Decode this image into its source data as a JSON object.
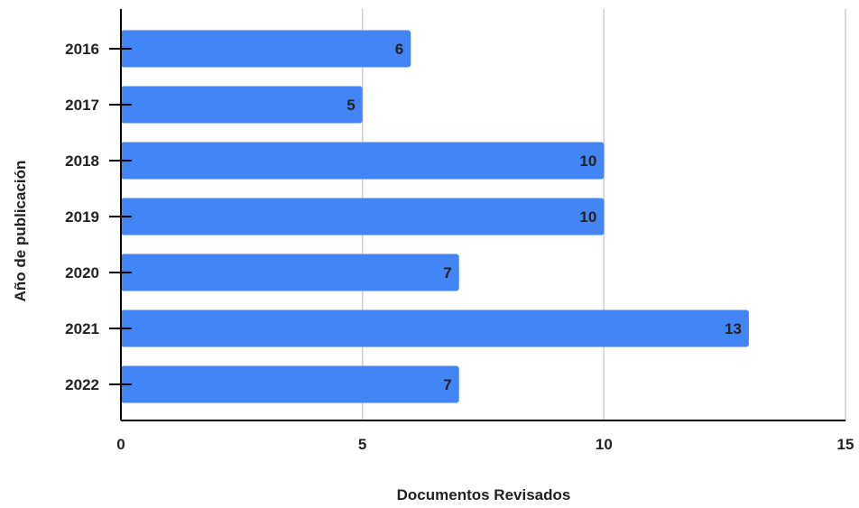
{
  "chart_data": {
    "type": "bar",
    "orientation": "horizontal",
    "categories": [
      "2016",
      "2017",
      "2018",
      "2019",
      "2020",
      "2021",
      "2022"
    ],
    "values": [
      6,
      5,
      10,
      10,
      7,
      13,
      7
    ],
    "data_labels": [
      "6",
      "5",
      "10",
      "10",
      "7",
      "13",
      "7"
    ],
    "xlabel": "Documentos Revisados",
    "ylabel": "Año de publicación",
    "xlim": [
      0,
      15
    ],
    "x_ticks": [
      0,
      5,
      10,
      15
    ],
    "x_tick_labels": [
      "0",
      "5",
      "10",
      "15"
    ],
    "grid": "vertical",
    "legend": "none",
    "colors": {
      "bar": "#4285f4",
      "grid": "#cccccc",
      "axis": "#000000",
      "label": "#222222"
    }
  }
}
